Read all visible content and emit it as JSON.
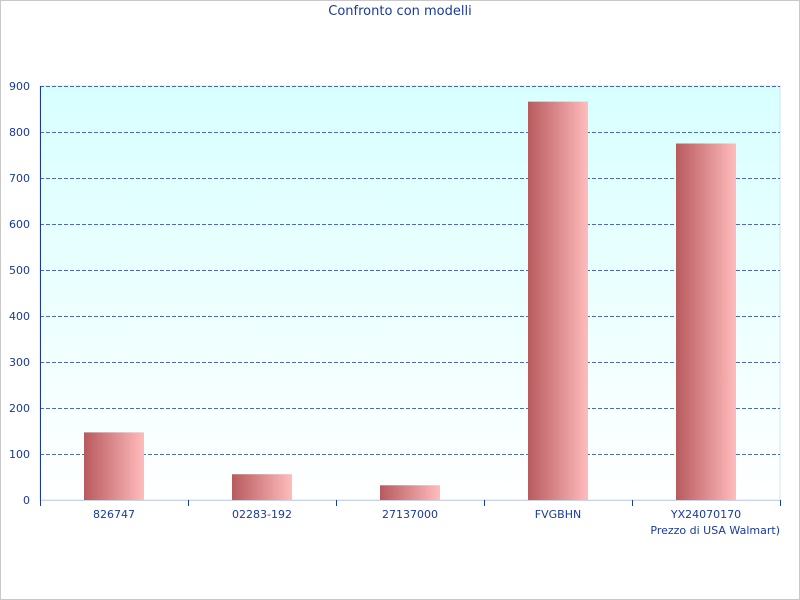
{
  "chart_data": {
    "type": "bar",
    "title": "Confronto con modelli",
    "xlabel": "Prezzo di USA Walmart)",
    "ylabel": "",
    "categories": [
      "826747",
      "02283-192",
      "27137000",
      "FVGBHN",
      "YX24070170"
    ],
    "values": [
      147,
      56,
      32,
      866,
      775
    ],
    "ylim": [
      0,
      900
    ],
    "yticks": [
      0,
      100,
      200,
      300,
      400,
      500,
      600,
      700,
      800,
      900
    ],
    "grid": true,
    "colors": {
      "bar_dark": "#b85a5e",
      "bar_light": "#ffbcbc",
      "plot_bg_top": "#d8ffff",
      "plot_bg_bottom": "#ffffff",
      "grid": "#1a3a9a",
      "text": "#1a3a9a"
    }
  }
}
